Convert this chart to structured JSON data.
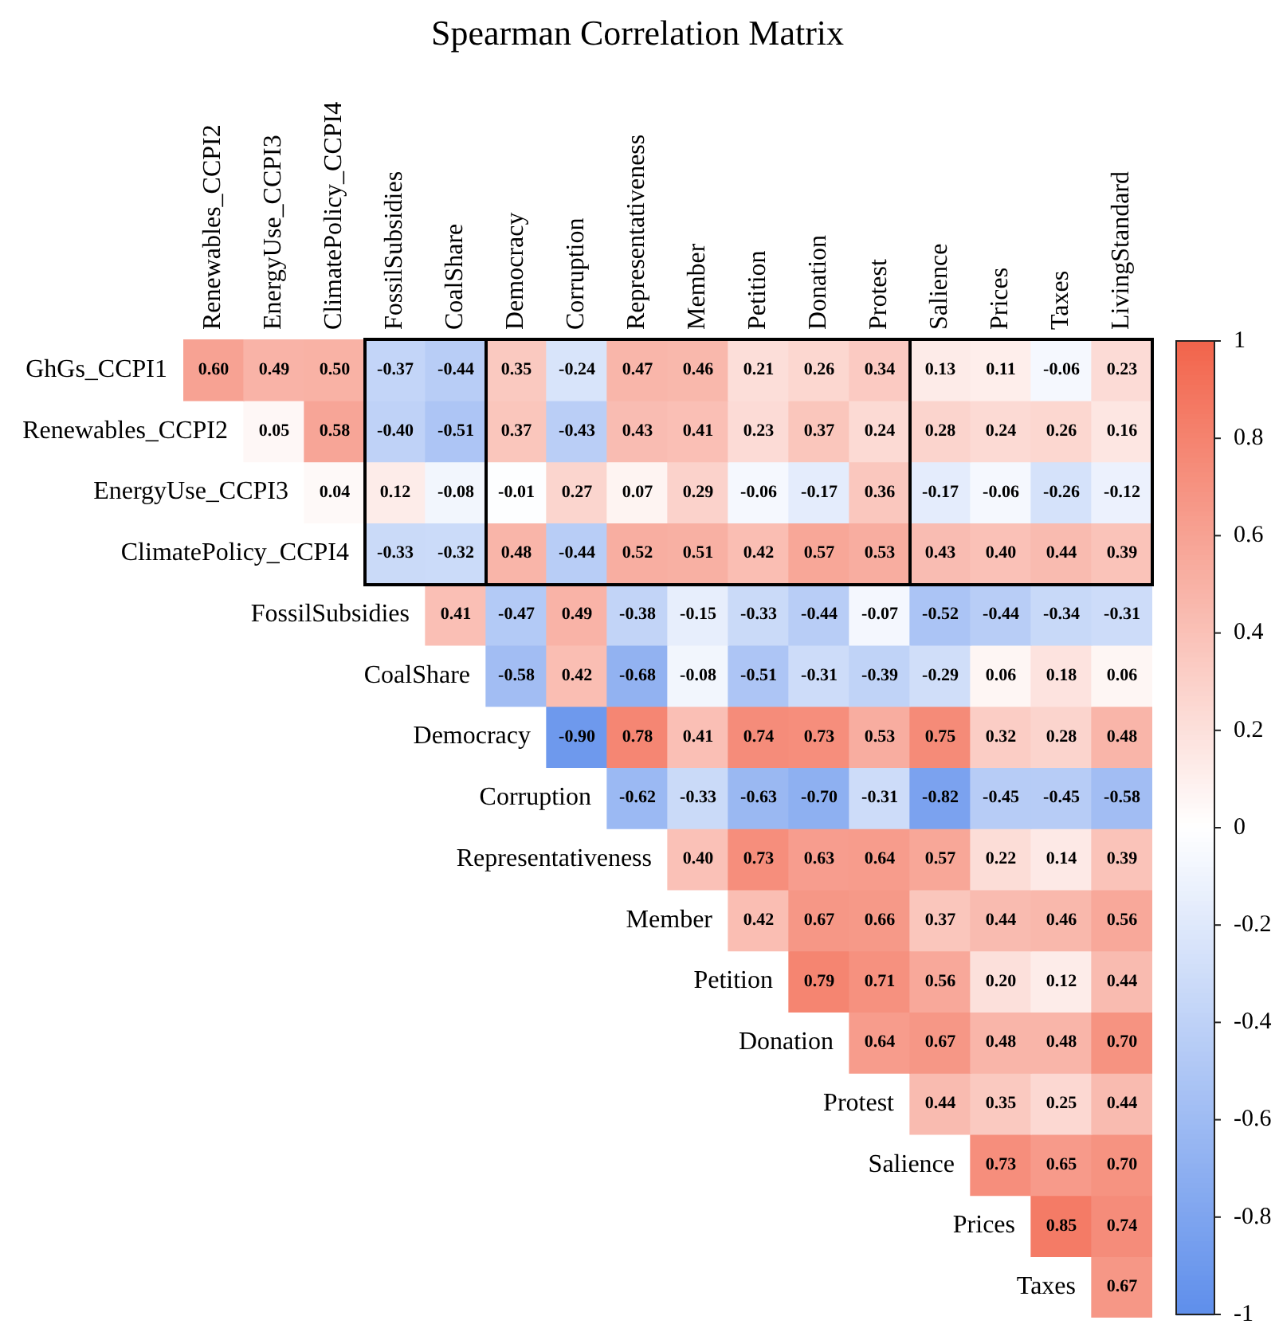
{
  "chart_data": {
    "type": "heatmap",
    "title": "Spearman Correlation Matrix",
    "categories": [
      "Renewables_CCPI2",
      "EnergyUse_CCPI3",
      "ClimatePolicy_CCPI4",
      "FossilSubsidies",
      "CoalShare",
      "Democracy",
      "Corruption",
      "Representativeness",
      "Member",
      "Petition",
      "Donation",
      "Protest",
      "Salience",
      "Prices",
      "Taxes",
      "LivingStandard"
    ],
    "y_categories": [
      "GhGs_CCPI1",
      "Renewables_CCPI2",
      "EnergyUse_CCPI3",
      "ClimatePolicy_CCPI4",
      "FossilSubsidies",
      "CoalShare",
      "Democracy",
      "Corruption",
      "Representativeness",
      "Member",
      "Petition",
      "Donation",
      "Protest",
      "Salience",
      "Prices",
      "Taxes"
    ],
    "cells": [
      [
        0.6,
        0.49,
        0.5,
        -0.37,
        -0.44,
        0.35,
        -0.24,
        0.47,
        0.46,
        0.21,
        0.26,
        0.34,
        0.13,
        0.11,
        -0.06,
        0.23
      ],
      [
        null,
        0.05,
        0.58,
        -0.4,
        -0.51,
        0.37,
        -0.43,
        0.43,
        0.41,
        0.23,
        0.37,
        0.24,
        0.28,
        0.24,
        0.26,
        0.16
      ],
      [
        null,
        null,
        0.04,
        0.12,
        -0.08,
        -0.01,
        0.27,
        0.07,
        0.29,
        -0.06,
        -0.17,
        0.36,
        -0.17,
        -0.06,
        -0.26,
        -0.12
      ],
      [
        null,
        null,
        null,
        -0.33,
        -0.32,
        0.48,
        -0.44,
        0.52,
        0.51,
        0.42,
        0.57,
        0.53,
        0.43,
        0.4,
        0.44,
        0.39
      ],
      [
        null,
        null,
        null,
        null,
        0.41,
        -0.47,
        0.49,
        -0.38,
        -0.15,
        -0.33,
        -0.44,
        -0.07,
        -0.52,
        -0.44,
        -0.34,
        -0.31
      ],
      [
        null,
        null,
        null,
        null,
        null,
        -0.58,
        0.42,
        -0.68,
        -0.08,
        -0.51,
        -0.31,
        -0.39,
        -0.29,
        0.06,
        0.18,
        0.06
      ],
      [
        null,
        null,
        null,
        null,
        null,
        null,
        -0.9,
        0.78,
        0.41,
        0.74,
        0.73,
        0.53,
        0.75,
        0.32,
        0.28,
        0.48
      ],
      [
        null,
        null,
        null,
        null,
        null,
        null,
        null,
        -0.62,
        -0.33,
        -0.63,
        -0.7,
        -0.31,
        -0.82,
        -0.45,
        -0.45,
        -0.58
      ],
      [
        null,
        null,
        null,
        null,
        null,
        null,
        null,
        null,
        0.4,
        0.73,
        0.63,
        0.64,
        0.57,
        0.22,
        0.14,
        0.39
      ],
      [
        null,
        null,
        null,
        null,
        null,
        null,
        null,
        null,
        null,
        0.42,
        0.67,
        0.66,
        0.37,
        0.44,
        0.46,
        0.56
      ],
      [
        null,
        null,
        null,
        null,
        null,
        null,
        null,
        null,
        null,
        null,
        0.79,
        0.71,
        0.56,
        0.2,
        0.12,
        0.44
      ],
      [
        null,
        null,
        null,
        null,
        null,
        null,
        null,
        null,
        null,
        null,
        null,
        0.64,
        0.67,
        0.48,
        0.48,
        0.7
      ],
      [
        null,
        null,
        null,
        null,
        null,
        null,
        null,
        null,
        null,
        null,
        null,
        null,
        0.44,
        0.35,
        0.25,
        0.44
      ],
      [
        null,
        null,
        null,
        null,
        null,
        null,
        null,
        null,
        null,
        null,
        null,
        null,
        null,
        0.73,
        0.65,
        0.7
      ],
      [
        null,
        null,
        null,
        null,
        null,
        null,
        null,
        null,
        null,
        null,
        null,
        null,
        null,
        null,
        0.85,
        0.74
      ],
      [
        null,
        null,
        null,
        null,
        null,
        null,
        null,
        null,
        null,
        null,
        null,
        null,
        null,
        null,
        null,
        0.67
      ]
    ],
    "cell_labels": [
      [
        "0.60",
        "0.49",
        "0.50",
        "-0.37",
        "-0.44",
        "0.35",
        "-0.24",
        "0.47",
        "0.46",
        "0.21",
        "0.26",
        "0.34",
        "0.13",
        "0.11",
        "-0.06",
        "0.23"
      ],
      [
        null,
        "0.05",
        "0.58",
        "-0.40",
        "-0.51",
        "0.37",
        "-0.43",
        "0.43",
        "0.41",
        "0.23",
        "0.37",
        "0.24",
        "0.28",
        "0.24",
        "0.26",
        "0.16"
      ],
      [
        null,
        null,
        "0.04",
        "0.12",
        "-0.08",
        "-0.01",
        "0.27",
        "0.07",
        "0.29",
        "-0.06",
        "-0.17",
        "0.36",
        "-0.17",
        "-0.06",
        "-0.26",
        "-0.12"
      ],
      [
        null,
        null,
        null,
        "-0.33",
        "-0.32",
        "0.48",
        "-0.44",
        "0.52",
        "0.51",
        "0.42",
        "0.57",
        "0.53",
        "0.43",
        "0.40",
        "0.44",
        "0.39"
      ],
      [
        null,
        null,
        null,
        null,
        "0.41",
        "-0.47",
        "0.49",
        "-0.38",
        "-0.15",
        "-0.33",
        "-0.44",
        "-0.07",
        "-0.52",
        "-0.44",
        "-0.34",
        "-0.31"
      ],
      [
        null,
        null,
        null,
        null,
        null,
        "-0.58",
        "0.42",
        "-0.68",
        "-0.08",
        "-0.51",
        "-0.31",
        "-0.39",
        "-0.29",
        "0.06",
        "0.18",
        "0.06"
      ],
      [
        null,
        null,
        null,
        null,
        null,
        null,
        "-0.90",
        "0.78",
        "0.41",
        "0.74",
        "0.73",
        "0.53",
        "0.75",
        "0.32",
        "0.28",
        "0.48"
      ],
      [
        null,
        null,
        null,
        null,
        null,
        null,
        null,
        "-0.62",
        "-0.33",
        "-0.63",
        "-0.70",
        "-0.31",
        "-0.82",
        "-0.45",
        "-0.45",
        "-0.58"
      ],
      [
        null,
        null,
        null,
        null,
        null,
        null,
        null,
        null,
        "0.40",
        "0.73",
        "0.63",
        "0.64",
        "0.57",
        "0.22",
        "0.14",
        "0.39"
      ],
      [
        null,
        null,
        null,
        null,
        null,
        null,
        null,
        null,
        null,
        "0.42",
        "0.67",
        "0.66",
        "0.37",
        "0.44",
        "0.46",
        "0.56"
      ],
      [
        null,
        null,
        null,
        null,
        null,
        null,
        null,
        null,
        null,
        null,
        "0.79",
        "0.71",
        "0.56",
        "0.20",
        "0.12",
        "0.44"
      ],
      [
        null,
        null,
        null,
        null,
        null,
        null,
        null,
        null,
        null,
        null,
        null,
        "0.64",
        "0.67",
        "0.48",
        "0.48",
        "0.70"
      ],
      [
        null,
        null,
        null,
        null,
        null,
        null,
        null,
        null,
        null,
        null,
        null,
        null,
        "0.44",
        "0.35",
        "0.25",
        "0.44"
      ],
      [
        null,
        null,
        null,
        null,
        null,
        null,
        null,
        null,
        null,
        null,
        null,
        null,
        null,
        "0.73",
        "0.65",
        "0.70"
      ],
      [
        null,
        null,
        null,
        null,
        null,
        null,
        null,
        null,
        null,
        null,
        null,
        null,
        null,
        null,
        "0.85",
        "0.74"
      ],
      [
        null,
        null,
        null,
        null,
        null,
        null,
        null,
        null,
        null,
        null,
        null,
        null,
        null,
        null,
        null,
        "0.67"
      ]
    ],
    "clim": [
      -1,
      1
    ],
    "cticks": [
      -1,
      -0.8,
      -0.6,
      -0.4,
      -0.2,
      0,
      0.2,
      0.4,
      0.6,
      0.8,
      1
    ],
    "data_labels": true
  }
}
